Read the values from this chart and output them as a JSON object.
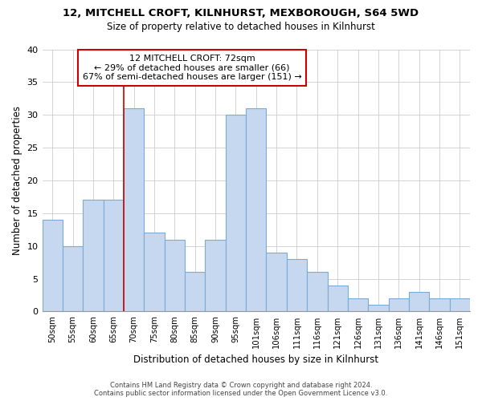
{
  "title1": "12, MITCHELL CROFT, KILNHURST, MEXBOROUGH, S64 5WD",
  "title2": "Size of property relative to detached houses in Kilnhurst",
  "xlabel": "Distribution of detached houses by size in Kilnhurst",
  "ylabel": "Number of detached properties",
  "categories": [
    "50sqm",
    "55sqm",
    "60sqm",
    "65sqm",
    "70sqm",
    "75sqm",
    "80sqm",
    "85sqm",
    "90sqm",
    "95sqm",
    "101sqm",
    "106sqm",
    "111sqm",
    "116sqm",
    "121sqm",
    "126sqm",
    "131sqm",
    "136sqm",
    "141sqm",
    "146sqm",
    "151sqm"
  ],
  "values": [
    14,
    10,
    17,
    17,
    31,
    12,
    11,
    6,
    11,
    30,
    31,
    9,
    8,
    6,
    4,
    2,
    1,
    2,
    3,
    2,
    2
  ],
  "bar_color": "#c5d8f0",
  "bar_edge_color": "#7baad4",
  "vline_color": "#cc0000",
  "vline_x_index": 4,
  "annotation_box_edge": "#cc0000",
  "annotation_box_color": "#ffffff",
  "grid_color": "#cccccc",
  "bg_color": "#ffffff",
  "plot_bg_color": "#ffffff",
  "footer1": "Contains HM Land Registry data © Crown copyright and database right 2024.",
  "footer2": "Contains public sector information licensed under the Open Government Licence v3.0.",
  "ylim": [
    0,
    40
  ],
  "subject_label": "12 MITCHELL CROFT: 72sqm",
  "annotation_line1": "← 29% of detached houses are smaller (66)",
  "annotation_line2": "67% of semi-detached houses are larger (151) →"
}
